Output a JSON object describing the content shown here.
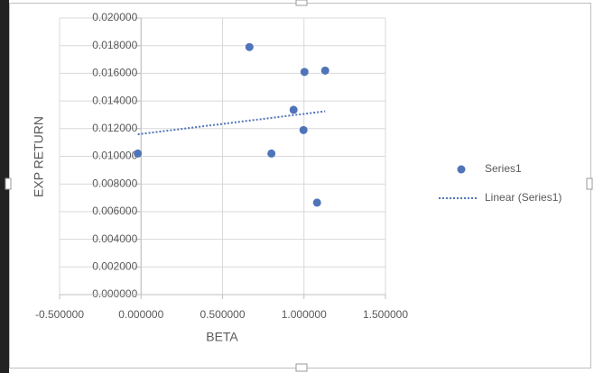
{
  "chart_data": {
    "type": "scatter",
    "x_label": "BETA",
    "y_label": "EXP RETURN",
    "series": [
      {
        "name": "Series1",
        "color": "#4f74b8",
        "x": [
          -0.02,
          0.665,
          1.003,
          1.13,
          0.936,
          0.997,
          0.8,
          1.08
        ],
        "values": [
          0.0102,
          0.0179,
          0.0161,
          0.0162,
          0.01336,
          0.0119,
          0.0102,
          0.00665
        ],
        "trendline": {
          "name": "Linear (Series1)"
        }
      }
    ],
    "xlim": [
      -0.5,
      1.5
    ],
    "xticks": [
      {
        "value": -0.5,
        "label": "-0.500000"
      },
      {
        "value": 0,
        "label": "0.000000"
      },
      {
        "value": 0.5,
        "label": "0.500000"
      },
      {
        "value": 1,
        "label": "1.000000"
      },
      {
        "value": 1.5,
        "label": "1.500000"
      }
    ],
    "ylim": [
      0,
      0.02
    ],
    "yticks": [
      {
        "value": 0,
        "label": "0.000000"
      },
      {
        "value": 0.002,
        "label": "0.002000"
      },
      {
        "value": 0.004,
        "label": "0.004000"
      },
      {
        "value": 0.006,
        "label": "0.006000"
      },
      {
        "value": 0.008,
        "label": "0.008000"
      },
      {
        "value": 0.01,
        "label": "0.010000"
      },
      {
        "value": 0.012,
        "label": "0.012000"
      },
      {
        "value": 0.014,
        "label": "0.014000"
      },
      {
        "value": 0.016,
        "label": "0.016000"
      },
      {
        "value": 0.018,
        "label": "0.018000"
      },
      {
        "value": 0.02,
        "label": "0.020000"
      }
    ],
    "grid": true,
    "legend": "right"
  }
}
